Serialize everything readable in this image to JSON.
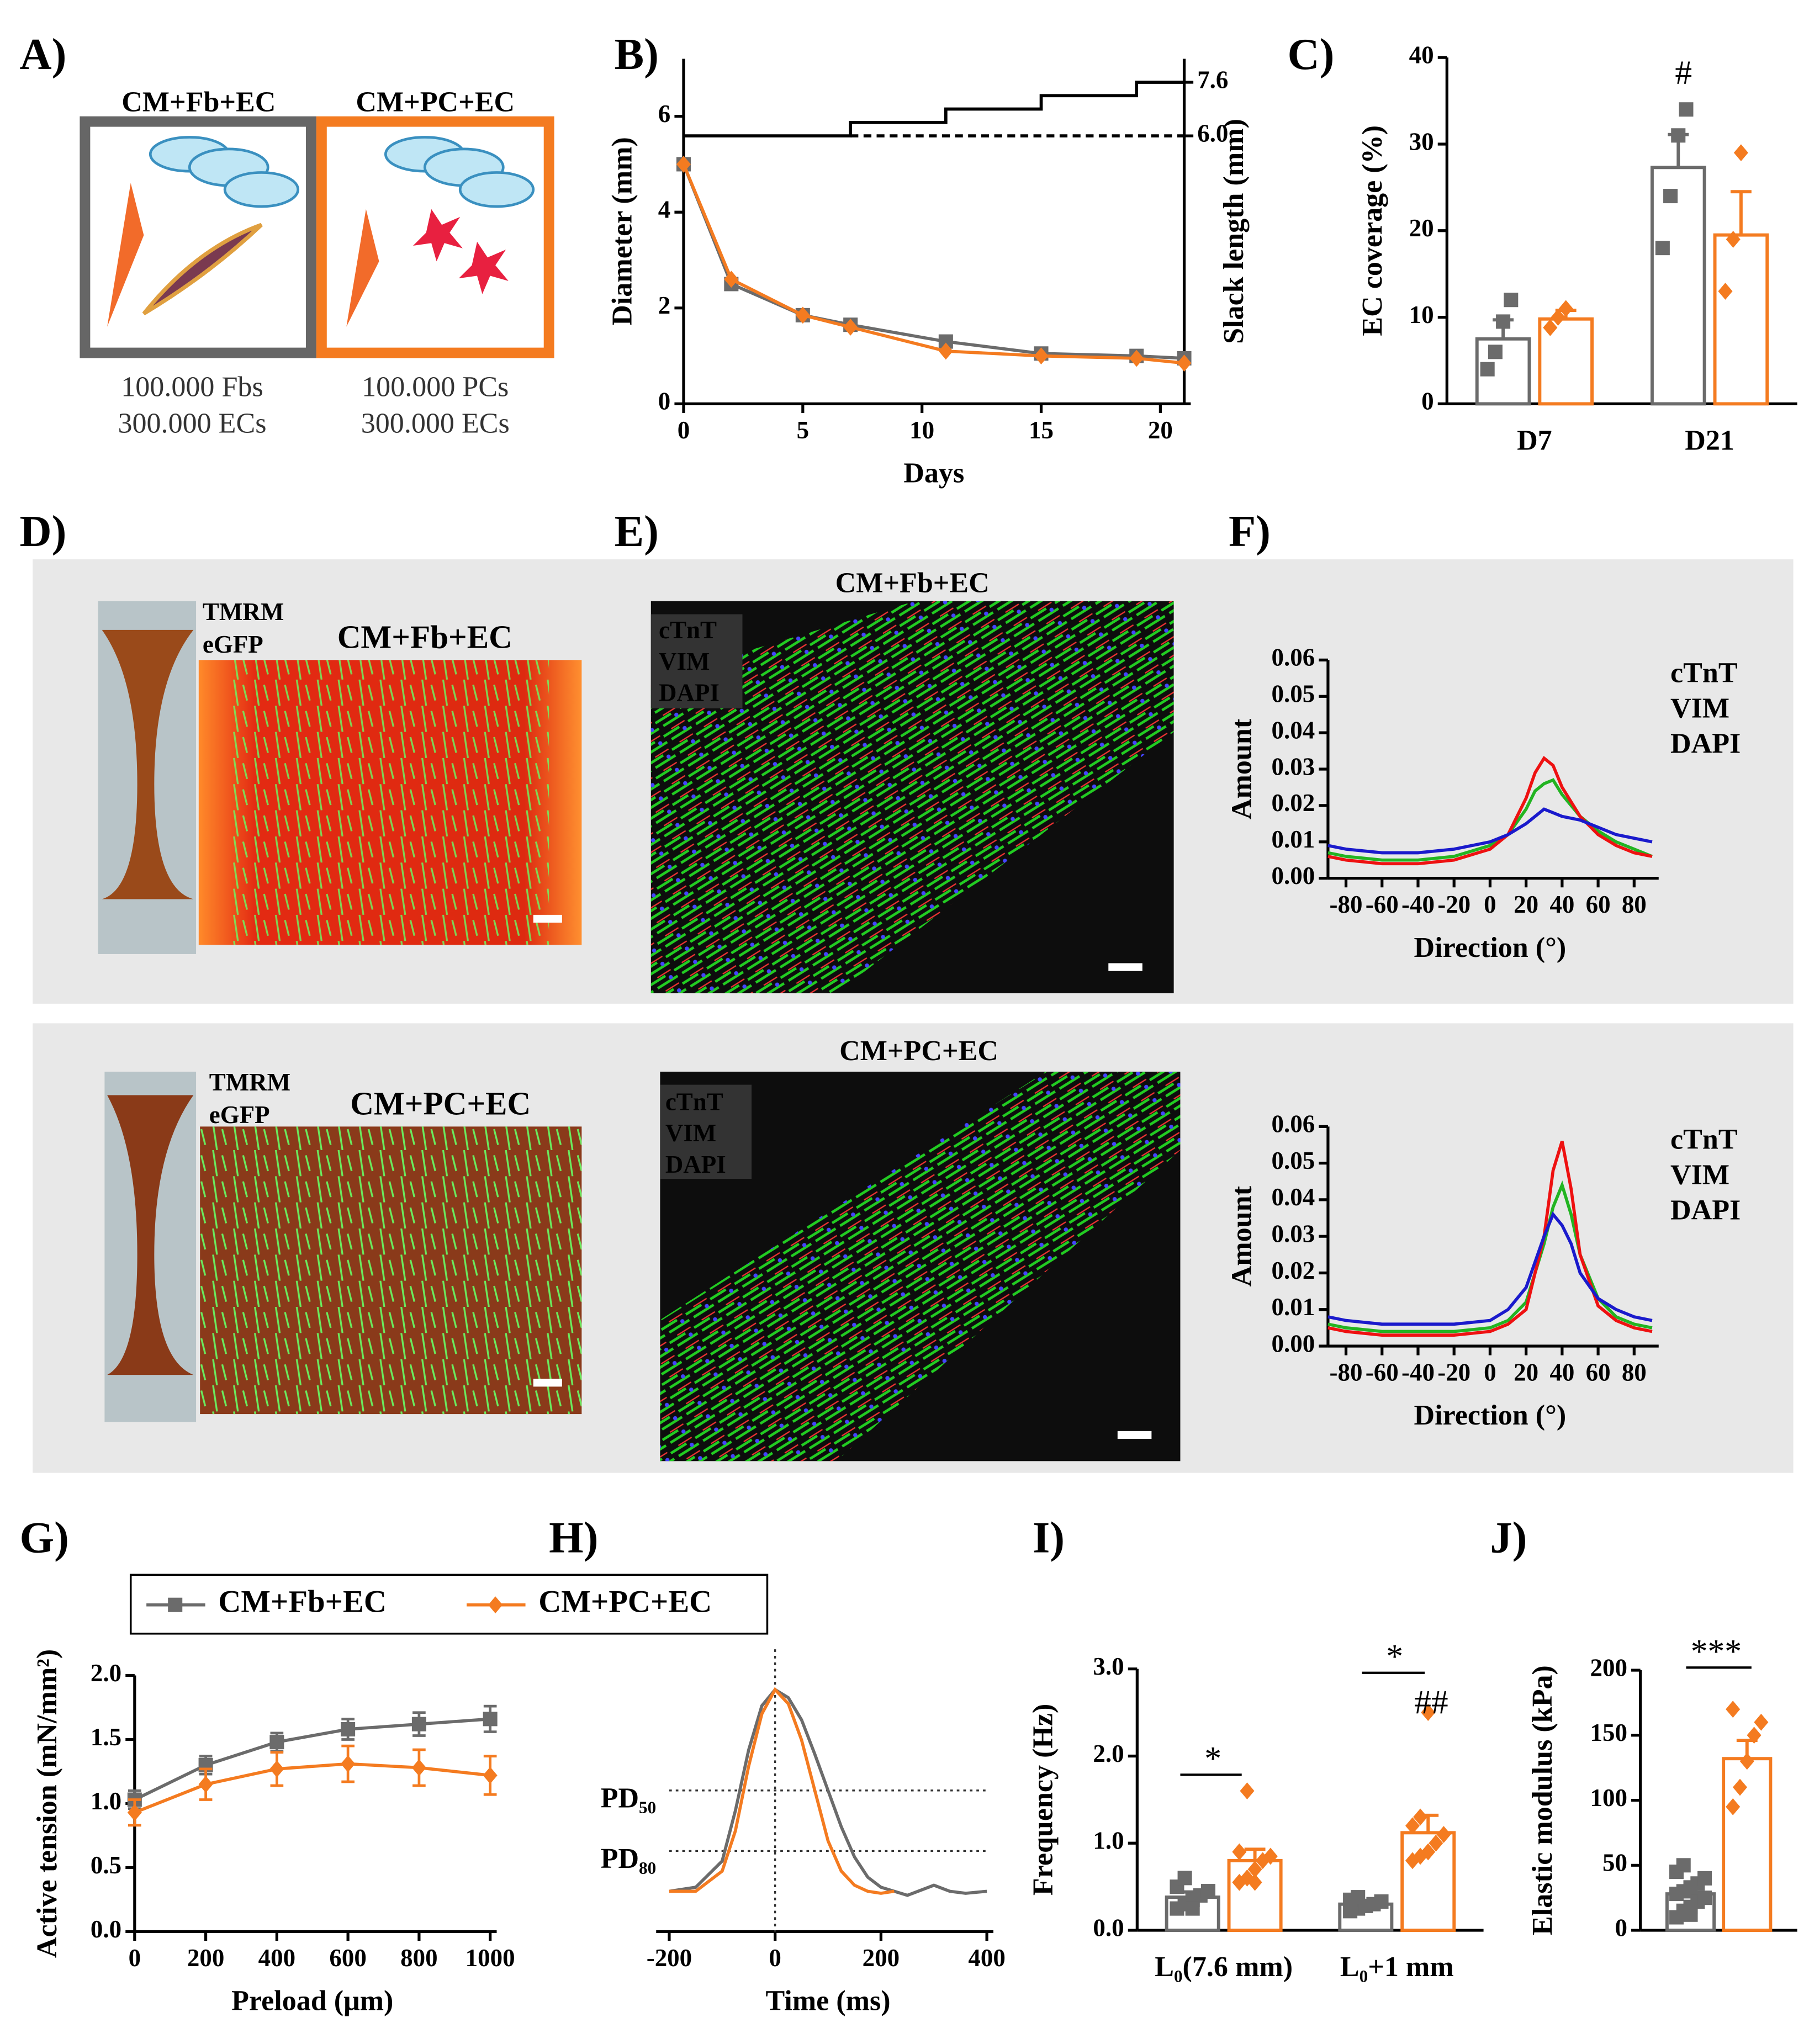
{
  "panels": [
    "A)",
    "B)",
    "C)",
    "D)",
    "E)",
    "F)",
    "G)",
    "H)",
    "I)",
    "J)"
  ],
  "schematic": [
    {
      "title": "CM+Fb+EC",
      "lines": [
        "100.000 Fbs",
        "300.000 ECs"
      ]
    },
    {
      "title": "CM+PC+EC",
      "lines": [
        "100.000 PCs",
        "300.000 ECs"
      ]
    }
  ],
  "images": [
    {
      "title": "CM+Fb+EC",
      "labels": [
        "TMRM",
        "eGFP"
      ]
    },
    {
      "title": "CM+PC+EC",
      "labels": [
        "TMRM",
        "eGFP"
      ]
    }
  ],
  "stains": [
    {
      "title": "CM+Fb+EC",
      "labels": [
        "cTnT",
        "VIM",
        "DAPI"
      ]
    },
    {
      "title": "CM+PC+EC",
      "labels": [
        "cTnT",
        "VIM",
        "DAPI"
      ]
    }
  ],
  "chart_data": [
    {
      "type": "line",
      "xlabel": "Days",
      "ylabel": "Diameter (mm)",
      "y2label": "Slack length (mm)",
      "xlim": [
        0,
        21
      ],
      "xticks": [
        0,
        5,
        10,
        15,
        20
      ],
      "ylim": [
        0,
        7.2
      ],
      "yticks": [
        0,
        2,
        4,
        6
      ],
      "y2lim": [
        -2.0,
        8.3
      ],
      "y2ticks": [
        {
          "value": 6,
          "label": "6.0"
        },
        7.6
      ],
      "series": [
        {
          "color": "#6b6b6b",
          "marker": "square",
          "x": [
            0,
            2,
            5,
            7,
            11,
            15,
            19,
            21
          ],
          "values": [
            5,
            2.5,
            1.85,
            1.65,
            1.3,
            1.05,
            1.0,
            0.95
          ]
        },
        {
          "color": "#f47b20",
          "marker": "diamond",
          "x": [
            0,
            2,
            5,
            7,
            11,
            15,
            19,
            21
          ],
          "values": [
            5,
            2.6,
            1.85,
            1.6,
            1.1,
            1.0,
            0.95,
            0.85
          ]
        },
        {
          "color": "#000000",
          "axis": "y2",
          "x": [
            0,
            7,
            7,
            11,
            11,
            15,
            15,
            19,
            19,
            21
          ],
          "values": [
            6.0,
            6.0,
            6.4,
            6.4,
            6.8,
            6.8,
            7.2,
            7.2,
            7.6,
            7.6
          ]
        },
        {
          "color": "#000000",
          "axis": "y2",
          "dash": true,
          "x": [
            7,
            21
          ],
          "values": [
            6.0,
            6.0
          ]
        }
      ]
    },
    {
      "type": "bar",
      "ylabel": "EC coverage (%)",
      "categories": [
        "D7",
        "D21"
      ],
      "ylim": [
        0,
        40
      ],
      "yticks": [
        0,
        10,
        20,
        30,
        40
      ],
      "annotations": [
        "#"
      ],
      "series": [
        {
          "color": "#6b6b6b",
          "marker": "square",
          "values": [
            7.5,
            27.3
          ],
          "errors": [
            2.2,
            3.8
          ],
          "points": [
            [
              4,
              6,
              9.5,
              12
            ],
            [
              18,
              24,
              31,
              34
            ]
          ]
        },
        {
          "color": "#f47b20",
          "marker": "diamond",
          "values": [
            9.8,
            19.5
          ],
          "errors": [
            1.0,
            5.0
          ],
          "points": [
            [
              8.8,
              10,
              11
            ],
            [
              13,
              19,
              29
            ]
          ]
        }
      ]
    },
    {
      "type": "line",
      "xlabel": "Direction (°)",
      "ylabel": "Amount",
      "legend": "right",
      "xlim": [
        -90,
        90
      ],
      "xticks": [
        -80,
        -60,
        -40,
        -20,
        0,
        20,
        40,
        60,
        80
      ],
      "ylim": [
        0,
        0.06
      ],
      "yticks": [
        {
          "value": 0,
          "label": "0.00"
        },
        0.01,
        0.02,
        0.03,
        0.04,
        0.05,
        0.06
      ],
      "x": [
        -90,
        -80,
        -60,
        -40,
        -20,
        0,
        10,
        20,
        25,
        30,
        35,
        40,
        50,
        60,
        70,
        80,
        90
      ],
      "series": [
        {
          "name": "cTnT",
          "color": "#22b422",
          "values": [
            0.007,
            0.006,
            0.005,
            0.005,
            0.006,
            0.009,
            0.012,
            0.019,
            0.024,
            0.026,
            0.027,
            0.023,
            0.017,
            0.013,
            0.01,
            0.008,
            0.006
          ]
        },
        {
          "name": "VIM",
          "color": "#ee1111",
          "values": [
            0.006,
            0.005,
            0.004,
            0.004,
            0.005,
            0.008,
            0.012,
            0.022,
            0.029,
            0.033,
            0.031,
            0.025,
            0.017,
            0.012,
            0.009,
            0.007,
            0.006
          ]
        },
        {
          "name": "DAPI",
          "color": "#1a1acc",
          "values": [
            0.009,
            0.008,
            0.007,
            0.007,
            0.008,
            0.01,
            0.012,
            0.015,
            0.017,
            0.019,
            0.018,
            0.017,
            0.016,
            0.014,
            0.012,
            0.011,
            0.01
          ]
        }
      ]
    },
    {
      "type": "line",
      "xlabel": "Direction (°)",
      "ylabel": "Amount",
      "legend": "right",
      "xlim": [
        -90,
        90
      ],
      "xticks": [
        -80,
        -60,
        -40,
        -20,
        0,
        20,
        40,
        60,
        80
      ],
      "ylim": [
        0,
        0.06
      ],
      "yticks": [
        {
          "value": 0,
          "label": "0.00"
        },
        0.01,
        0.02,
        0.03,
        0.04,
        0.05,
        0.06
      ],
      "x": [
        -90,
        -80,
        -60,
        -40,
        -20,
        0,
        10,
        20,
        30,
        35,
        40,
        45,
        50,
        60,
        70,
        80,
        90
      ],
      "series": [
        {
          "name": "cTnT",
          "color": "#22b422",
          "values": [
            0.006,
            0.005,
            0.004,
            0.004,
            0.004,
            0.005,
            0.007,
            0.012,
            0.028,
            0.038,
            0.044,
            0.036,
            0.025,
            0.013,
            0.008,
            0.006,
            0.005
          ]
        },
        {
          "name": "VIM",
          "color": "#ee1111",
          "values": [
            0.005,
            0.004,
            0.003,
            0.003,
            0.003,
            0.004,
            0.006,
            0.01,
            0.03,
            0.048,
            0.056,
            0.043,
            0.025,
            0.011,
            0.007,
            0.005,
            0.004
          ]
        },
        {
          "name": "DAPI",
          "color": "#1a1acc",
          "values": [
            0.008,
            0.007,
            0.006,
            0.006,
            0.006,
            0.007,
            0.01,
            0.016,
            0.03,
            0.036,
            0.033,
            0.028,
            0.02,
            0.013,
            0.01,
            0.008,
            0.007
          ]
        }
      ]
    },
    {
      "type": "line",
      "xlabel": "Preload (μm)",
      "ylabel": "Active tension (mN/mm²)",
      "legend": "top",
      "xlim": [
        0,
        1000
      ],
      "xticks": [
        0,
        200,
        400,
        600,
        800,
        1000
      ],
      "ylim": [
        0,
        2.0
      ],
      "yticks": [
        {
          "value": 0,
          "label": "0.0"
        },
        0.5,
        {
          "value": 1,
          "label": "1.0"
        },
        1.5,
        {
          "value": 2,
          "label": "2.0"
        }
      ],
      "x": [
        0,
        200,
        400,
        600,
        800,
        1000
      ],
      "series": [
        {
          "name": "CM+Fb+EC",
          "color": "#6b6b6b",
          "marker": "square",
          "values": [
            1.03,
            1.3,
            1.48,
            1.58,
            1.62,
            1.66
          ],
          "errors": [
            0.07,
            0.07,
            0.07,
            0.08,
            0.09,
            0.1
          ]
        },
        {
          "name": "CM+PC+EC",
          "color": "#f47b20",
          "marker": "diamond",
          "values": [
            0.93,
            1.15,
            1.27,
            1.31,
            1.28,
            1.22
          ],
          "errors": [
            0.1,
            0.12,
            0.13,
            0.14,
            0.14,
            0.15
          ]
        }
      ]
    },
    {
      "type": "line",
      "xlabel": "Time (ms)",
      "xlim": [
        -200,
        400
      ],
      "xticks": [
        -200,
        0,
        200,
        400
      ],
      "ylim": [
        -0.2,
        1.2
      ],
      "hlines": [
        {
          "value": 0.5,
          "label": "PD₅₀"
        },
        {
          "value": 0.2,
          "label": "PD₈₀"
        }
      ],
      "vlines": [
        0
      ],
      "series": [
        {
          "color": "#6b6b6b",
          "x": [
            -200,
            -150,
            -100,
            -75,
            -50,
            -25,
            0,
            25,
            50,
            75,
            100,
            125,
            150,
            175,
            200,
            250,
            300,
            330,
            360,
            400
          ],
          "values": [
            0,
            0.02,
            0.15,
            0.4,
            0.7,
            0.92,
            1.0,
            0.96,
            0.85,
            0.68,
            0.5,
            0.32,
            0.17,
            0.07,
            0.02,
            -0.02,
            0.03,
            0,
            -0.01,
            0
          ]
        },
        {
          "color": "#f47b20",
          "x": [
            -200,
            -150,
            -100,
            -75,
            -50,
            -25,
            0,
            25,
            50,
            75,
            100,
            125,
            150,
            175,
            200,
            225
          ],
          "values": [
            0,
            0,
            0.1,
            0.3,
            0.62,
            0.88,
            1.0,
            0.93,
            0.75,
            0.5,
            0.25,
            0.1,
            0.03,
            0,
            -0.01,
            0
          ]
        }
      ]
    },
    {
      "type": "bar",
      "ylabel": "Frequency (Hz)",
      "categories": [
        "L₀(7.6 mm)",
        "L₀+1 mm"
      ],
      "ylim": [
        0,
        3.0
      ],
      "yticks": [
        {
          "value": 0,
          "label": "0.0"
        },
        {
          "value": 1,
          "label": "1.0"
        },
        {
          "value": 2,
          "label": "2.0"
        },
        {
          "value": 3,
          "label": "3.0"
        }
      ],
      "annotations": [
        "*",
        "*",
        "##"
      ],
      "series": [
        {
          "color": "#6b6b6b",
          "marker": "square",
          "values": [
            0.38,
            0.3
          ],
          "errors": [
            0.06,
            0.04
          ],
          "points": [
            [
              0.25,
              0.3,
              0.35,
              0.4,
              0.45,
              0.5,
              0.6,
              0.25
            ],
            [
              0.22,
              0.25,
              0.28,
              0.3,
              0.33,
              0.35,
              0.38
            ]
          ]
        },
        {
          "color": "#f47b20",
          "marker": "diamond",
          "values": [
            0.8,
            1.12
          ],
          "errors": [
            0.13,
            0.2
          ],
          "points": [
            [
              0.55,
              0.6,
              0.7,
              0.8,
              0.85,
              0.9,
              1.6,
              0.55
            ],
            [
              0.8,
              0.85,
              0.9,
              1.0,
              1.1,
              1.2,
              1.3,
              2.5
            ]
          ]
        }
      ]
    },
    {
      "type": "bar",
      "ylabel": "Elastic modulus (kPa)",
      "ylim": [
        0,
        200
      ],
      "yticks": [
        0,
        50,
        100,
        150,
        200
      ],
      "annotations": [
        "***"
      ],
      "series": [
        {
          "color": "#6b6b6b",
          "marker": "square",
          "values": [
            28
          ],
          "errors": [
            5
          ],
          "points": [
            [
              10,
              15,
              18,
              22,
              25,
              28,
              30,
              33,
              36,
              40,
              45,
              50,
              12
            ]
          ]
        },
        {
          "color": "#f47b20",
          "marker": "diamond",
          "values": [
            132
          ],
          "errors": [
            14
          ],
          "points": [
            [
              95,
              110,
              130,
              150,
              160,
              170
            ]
          ]
        }
      ]
    }
  ]
}
